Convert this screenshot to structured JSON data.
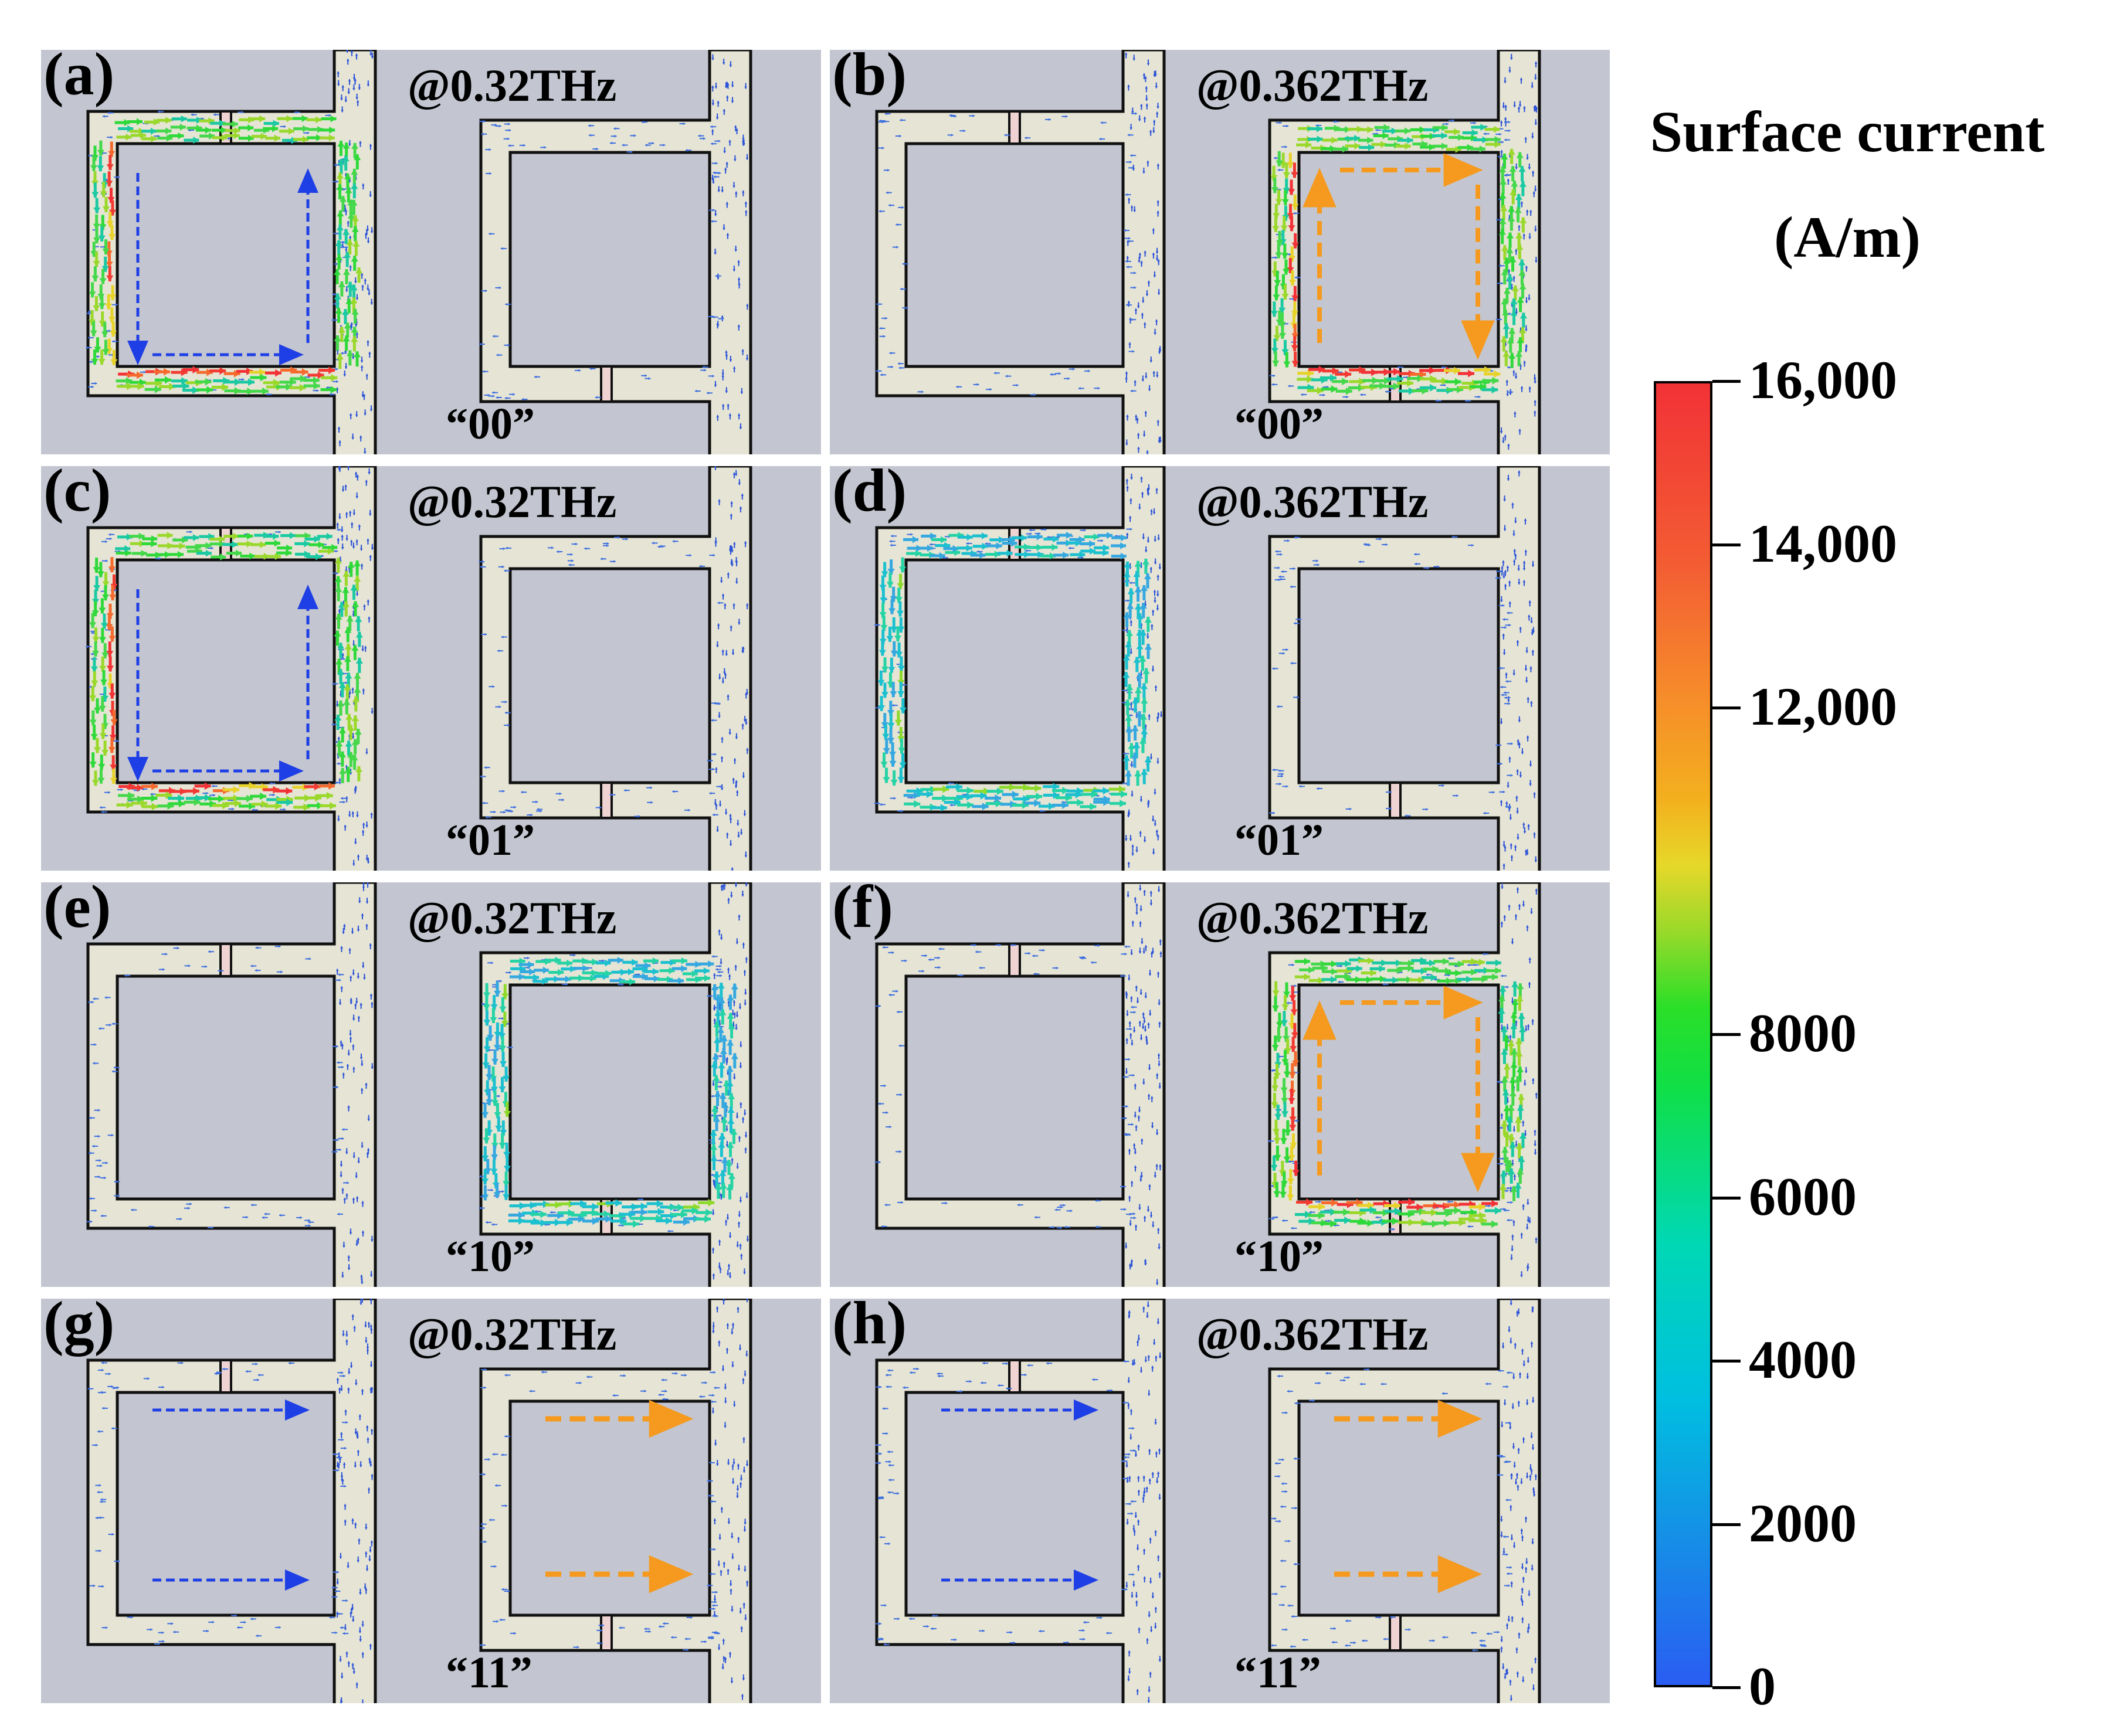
{
  "colors": {
    "panel_background": "#c3c6d0",
    "metal": "#e6e5d5",
    "gap_pad": "#efd3d3",
    "arrow_blue": "#1f3fe6",
    "arrow_orange": "#f59a1f"
  },
  "panels": [
    {
      "id": "a",
      "label": "(a)",
      "frequency": "@0.32THz",
      "code": "“00”",
      "active_ring": "left",
      "intensity": "strong"
    },
    {
      "id": "b",
      "label": "(b)",
      "frequency": "@0.362THz",
      "code": "“00”",
      "active_ring": "right",
      "intensity": "strong"
    },
    {
      "id": "c",
      "label": "(c)",
      "frequency": "@0.32THz",
      "code": "“01”",
      "active_ring": "left",
      "intensity": "strong"
    },
    {
      "id": "d",
      "label": "(d)",
      "frequency": "@0.362THz",
      "code": "“01”",
      "active_ring": "left",
      "intensity": "weak"
    },
    {
      "id": "e",
      "label": "(e)",
      "frequency": "@0.32THz",
      "code": "“10”",
      "active_ring": "right",
      "intensity": "medium"
    },
    {
      "id": "f",
      "label": "(f)",
      "frequency": "@0.362THz",
      "code": "“10”",
      "active_ring": "right",
      "intensity": "strong"
    },
    {
      "id": "g",
      "label": "(g)",
      "frequency": "@0.32THz",
      "code": "“11”",
      "active_ring": "none",
      "intensity": "weak"
    },
    {
      "id": "h",
      "label": "(h)",
      "frequency": "@0.362THz",
      "code": "“11”",
      "active_ring": "none",
      "intensity": "weak"
    }
  ],
  "legend": {
    "title_line1": "Surface current",
    "title_line2": "(A/m)",
    "min": 0,
    "max": 16000,
    "ticks": [
      {
        "value": 16000,
        "label": "16,000"
      },
      {
        "value": 14000,
        "label": "14,000"
      },
      {
        "value": 12000,
        "label": "12,000"
      },
      {
        "value": 8000,
        "label": "8000"
      },
      {
        "value": 6000,
        "label": "6000"
      },
      {
        "value": 4000,
        "label": "4000"
      },
      {
        "value": 2000,
        "label": "2000"
      },
      {
        "value": 0,
        "label": "0"
      }
    ]
  }
}
